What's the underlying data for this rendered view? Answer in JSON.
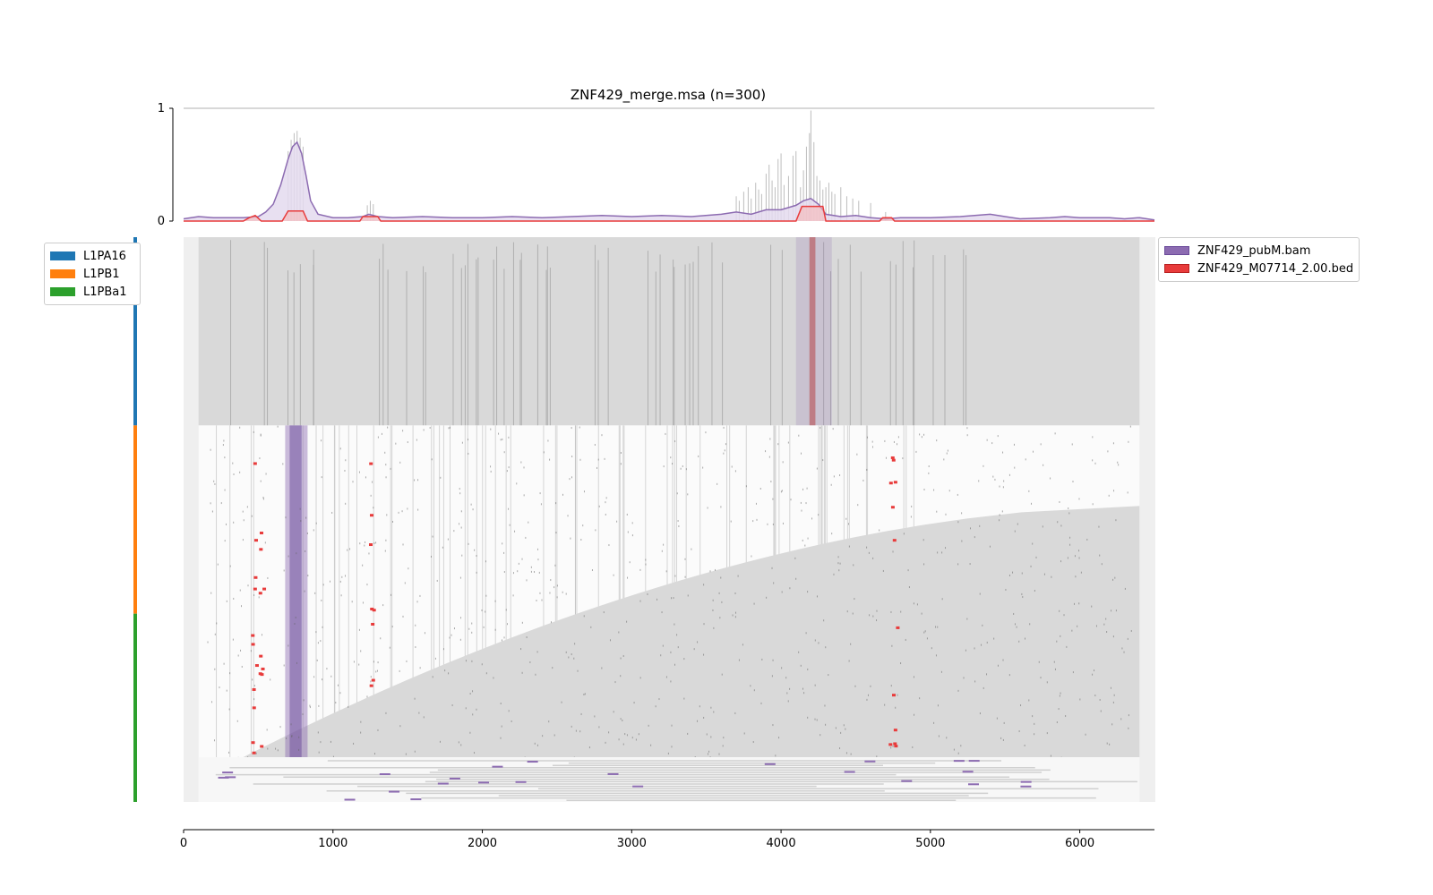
{
  "chart_data": {
    "type": "area",
    "title": "ZNF429_merge.msa (n=300)",
    "profile": {
      "ylim": [
        0,
        1
      ],
      "yticks": [
        "0",
        "1"
      ],
      "series": [
        {
          "name": "ZNF429_pubM.bam",
          "color": "#8c6bb1",
          "fill": "#e4dbef",
          "x": [
            0,
            100,
            200,
            300,
            400,
            500,
            550,
            600,
            650,
            700,
            730,
            760,
            790,
            820,
            850,
            900,
            1000,
            1100,
            1200,
            1240,
            1300,
            1400,
            1600,
            1800,
            2000,
            2200,
            2400,
            2600,
            2800,
            3000,
            3200,
            3400,
            3600,
            3700,
            3800,
            3900,
            4000,
            4100,
            4150,
            4200,
            4250,
            4300,
            4400,
            4500,
            4600,
            4700,
            4800,
            5000,
            5200,
            5400,
            5500,
            5600,
            5800,
            5900,
            6000,
            6200,
            6300,
            6400,
            6500
          ],
          "y": [
            0.02,
            0.04,
            0.03,
            0.03,
            0.03,
            0.04,
            0.08,
            0.15,
            0.32,
            0.55,
            0.66,
            0.7,
            0.6,
            0.4,
            0.18,
            0.06,
            0.03,
            0.03,
            0.04,
            0.06,
            0.04,
            0.03,
            0.04,
            0.03,
            0.03,
            0.04,
            0.03,
            0.04,
            0.05,
            0.04,
            0.05,
            0.04,
            0.06,
            0.08,
            0.06,
            0.1,
            0.1,
            0.14,
            0.18,
            0.2,
            0.15,
            0.06,
            0.04,
            0.05,
            0.03,
            0.02,
            0.03,
            0.03,
            0.04,
            0.06,
            0.04,
            0.02,
            0.03,
            0.04,
            0.03,
            0.03,
            0.02,
            0.03,
            0.01
          ]
        },
        {
          "name": "ZNF429_M07714_2.00.bed",
          "color": "#e83b3b",
          "fill": "#f6b8b8",
          "x": [
            0,
            400,
            440,
            480,
            520,
            660,
            700,
            800,
            830,
            1180,
            1200,
            1300,
            1320,
            4100,
            4140,
            4280,
            4300,
            4660,
            4680,
            4740,
            4760,
            6500
          ],
          "y": [
            0.0,
            0.0,
            0.03,
            0.05,
            0.0,
            0.0,
            0.09,
            0.09,
            0.0,
            0.0,
            0.04,
            0.04,
            0.0,
            0.0,
            0.13,
            0.13,
            0.0,
            0.0,
            0.03,
            0.03,
            0.0,
            0.0
          ]
        }
      ],
      "spikes": {
        "x": [
          700,
          720,
          740,
          760,
          780,
          800,
          1230,
          1250,
          1270,
          3700,
          3720,
          3750,
          3780,
          3800,
          3830,
          3850,
          3870,
          3900,
          3920,
          3940,
          3960,
          3980,
          4000,
          4020,
          4050,
          4080,
          4100,
          4130,
          4150,
          4170,
          4190,
          4200,
          4220,
          4240,
          4260,
          4280,
          4300,
          4320,
          4340,
          4360,
          4400,
          4440,
          4480,
          4520,
          4600,
          4700
        ],
        "y": [
          0.62,
          0.72,
          0.78,
          0.8,
          0.74,
          0.66,
          0.14,
          0.18,
          0.15,
          0.22,
          0.18,
          0.26,
          0.3,
          0.2,
          0.34,
          0.28,
          0.24,
          0.42,
          0.5,
          0.36,
          0.3,
          0.55,
          0.6,
          0.32,
          0.4,
          0.58,
          0.62,
          0.3,
          0.45,
          0.66,
          0.78,
          0.98,
          0.7,
          0.4,
          0.36,
          0.28,
          0.3,
          0.34,
          0.26,
          0.24,
          0.3,
          0.22,
          0.2,
          0.18,
          0.16,
          0.08
        ]
      }
    },
    "alignment": {
      "n_sequences": 300,
      "groups": [
        {
          "name": "L1PA16",
          "color": "#1f77b4",
          "count": 100
        },
        {
          "name": "L1PB1",
          "color": "#ff7f0e",
          "count": 100
        },
        {
          "name": "L1PBa1",
          "color": "#2ca02c",
          "count": 100
        }
      ],
      "peak_band_x": [
        680,
        830
      ],
      "motif_band_x": [
        4180,
        4240
      ]
    },
    "xaxis": {
      "xlim": [
        0,
        6500
      ],
      "ticks": [
        0,
        1000,
        2000,
        3000,
        4000,
        5000,
        6000
      ],
      "tick_labels": [
        "0",
        "1000",
        "2000",
        "3000",
        "4000",
        "5000",
        "6000"
      ]
    },
    "legend_groups": [
      "L1PA16",
      "L1PB1",
      "L1PBa1"
    ],
    "legend_tracks": [
      "ZNF429_pubM.bam",
      "ZNF429_M07714_2.00.bed"
    ]
  }
}
